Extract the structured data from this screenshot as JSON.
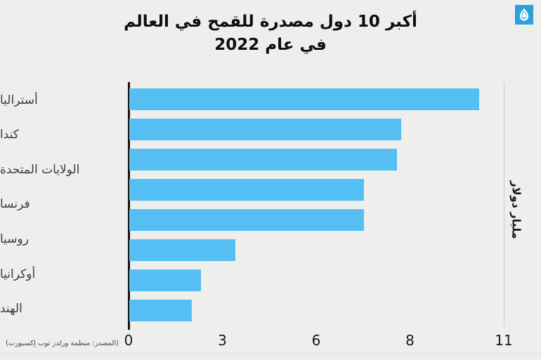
{
  "page": {
    "background": "#eeeeec"
  },
  "logo": {
    "name": "Al Jazeera",
    "square_color": "#2d9fd9",
    "glyph_color": "#ffffff"
  },
  "title": {
    "line1": "أكبر 10 دول مصدرة للقمح في العالم",
    "line2": "في عام 2022"
  },
  "chart_data": {
    "type": "bar",
    "orientation": "horizontal",
    "title": "أكبر 10 دول مصدرة للقمح في العالم في عام 2022",
    "categories": [
      "أستراليا",
      "كندا",
      "الولايات المتحدة",
      "فرنسا",
      "روسيا",
      "أوكرانيا",
      "الهند"
    ],
    "values": [
      10.2,
      7.8,
      7.7,
      7.0,
      7.0,
      3.4,
      2.3,
      2.0
    ],
    "series_note": "8 bars are drawn but only 7 category labels are shown; the France label sits between the 4th and 5th bars",
    "value_axis": {
      "tick_labels": [
        "0",
        "3",
        "6",
        "8",
        "11"
      ],
      "tick_values": [
        0,
        3,
        6,
        8,
        11
      ],
      "note": "ticks are evenly spaced in pixels although values 0,3,6,8,11 are not linear"
    },
    "unit_label": "مليار دولار",
    "bar_color": "#55bef3",
    "grid": "single right boundary gridline",
    "legend": "none"
  },
  "source": {
    "text": "(المصدر: منظمة ورلدز توب إكسبورت)"
  }
}
